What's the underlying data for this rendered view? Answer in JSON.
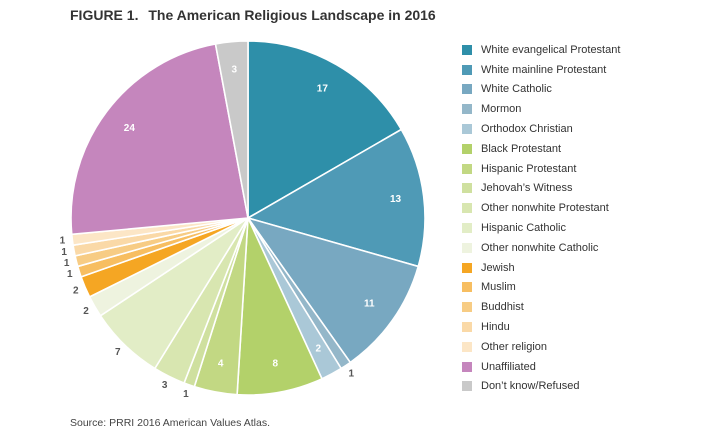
{
  "title": {
    "label": "FIGURE 1.",
    "text": "The American Religious Landscape in 2016"
  },
  "source": "Source: PRRI 2016 American Values Atlas.",
  "chart_data": {
    "type": "pie",
    "title": "The American Religious Landscape in 2016",
    "legend_position": "right",
    "slices": [
      {
        "name": "White evangelical Protestant",
        "value": 17,
        "label": "17",
        "color": "#2e8fa9",
        "label_style": "inside-light"
      },
      {
        "name": "White mainline Protestant",
        "value": 13,
        "label": "13",
        "color": "#4f9ab6",
        "label_style": "inside-light"
      },
      {
        "name": "White Catholic",
        "value": 11,
        "label": "11",
        "color": "#78a8c1",
        "label_style": "inside-light"
      },
      {
        "name": "Mormon",
        "value": 1,
        "label": "1",
        "color": "#94b7c9",
        "label_style": "outside"
      },
      {
        "name": "Orthodox Christian",
        "value": 2,
        "label": "2",
        "color": "#aac8d7",
        "label_style": "inside-light"
      },
      {
        "name": "Black Protestant",
        "value": 8,
        "label": "8",
        "color": "#b3d16a",
        "label_style": "inside-light"
      },
      {
        "name": "Hispanic Protestant",
        "value": 4,
        "label": "4",
        "color": "#c2d883",
        "label_style": "inside-light"
      },
      {
        "name": "Jehovah's Witness",
        "value": 1,
        "label": "1",
        "color": "#cfe09f",
        "label_style": "outside"
      },
      {
        "name": "Other nonwhite Protestant",
        "value": 3,
        "label": "3",
        "color": "#d8e6b0",
        "label_style": "outside"
      },
      {
        "name": "Hispanic Catholic",
        "value": 7,
        "label": "7",
        "color": "#e2edc6",
        "label_style": "outside"
      },
      {
        "name": "Other nonwhite Catholic",
        "value": 2,
        "label": "2",
        "color": "#eef3df",
        "label_style": "outside"
      },
      {
        "name": "Jewish",
        "value": 2,
        "label": "2",
        "color": "#f5a623",
        "label_style": "outside"
      },
      {
        "name": "Muslim",
        "value": 1,
        "label": "1",
        "color": "#f7be61",
        "label_style": "outside"
      },
      {
        "name": "Buddhist",
        "value": 1,
        "label": "1",
        "color": "#f7cc84",
        "label_style": "outside"
      },
      {
        "name": "Hindu",
        "value": 1,
        "label": "1",
        "color": "#fad9a7",
        "label_style": "outside"
      },
      {
        "name": "Other religion",
        "value": 1,
        "label": "1",
        "color": "#fce6c6",
        "label_style": "outside"
      },
      {
        "name": "Unaffiliated",
        "value": 24,
        "label": "24",
        "color": "#c586bd",
        "label_style": "inside-light"
      },
      {
        "name": "Don't know/Refused",
        "value": 3,
        "label": "3",
        "color": "#c9c9c9",
        "label_style": "inside-light"
      }
    ],
    "legend": [
      {
        "name": "White evangelical Protestant",
        "color": "#2e8fa9"
      },
      {
        "name": "White mainline Protestant",
        "color": "#4f9ab6"
      },
      {
        "name": "White Catholic",
        "color": "#78a8c1"
      },
      {
        "name": "Mormon",
        "color": "#94b7c9"
      },
      {
        "name": "Orthodox Christian",
        "color": "#aac8d7"
      },
      {
        "name": "Black Protestant",
        "color": "#b3d16a"
      },
      {
        "name": "Hispanic Protestant",
        "color": "#c2d883"
      },
      {
        "name": "Jehovah’s Witness",
        "color": "#cfe09f"
      },
      {
        "name": "Other nonwhite Protestant",
        "color": "#d8e6b0"
      },
      {
        "name": "Hispanic Catholic",
        "color": "#e2edc6"
      },
      {
        "name": "Other nonwhite Catholic",
        "color": "#eef3df"
      },
      {
        "name": "Jewish",
        "color": "#f5a623"
      },
      {
        "name": "Muslim",
        "color": "#f7be61"
      },
      {
        "name": "Buddhist",
        "color": "#f7cc84"
      },
      {
        "name": "Hindu",
        "color": "#fad9a7"
      },
      {
        "name": "Other religion",
        "color": "#fce6c6"
      },
      {
        "name": "Unaffiliated",
        "color": "#c586bd"
      },
      {
        "name": "Don’t know/Refused",
        "color": "#c9c9c9"
      }
    ]
  }
}
